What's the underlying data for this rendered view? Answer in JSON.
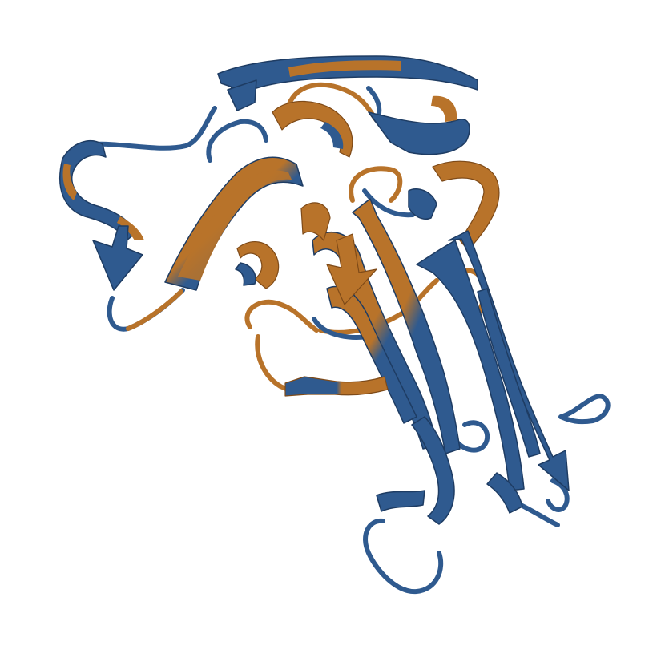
{
  "image": {
    "subject": "protein-structure-ribbon",
    "background": "#ffffff",
    "colors": {
      "blue": "#2f5a8f",
      "blue_dark": "#1e3c63",
      "orange": "#b8732a",
      "orange_dark": "#7e4a18"
    },
    "elements": [
      "coil-loops",
      "beta-strand-arrows",
      "helix-turns"
    ]
  }
}
